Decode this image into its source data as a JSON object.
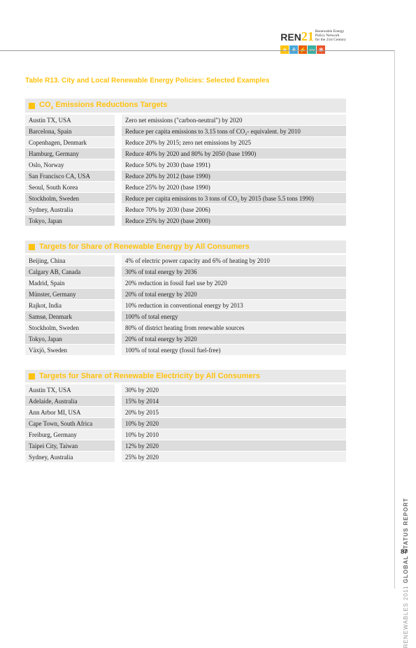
{
  "logo": {
    "prefix": "REN",
    "num": "21",
    "sub1": "Renewable Energy",
    "sub2": "Policy Network",
    "sub3": "for the 21st Century"
  },
  "icons": [
    {
      "bg": "#FFC20E",
      "glyph": "☀"
    },
    {
      "bg": "#4AA8D8",
      "glyph": "⚘"
    },
    {
      "bg": "#E85D00",
      "glyph": "⚡"
    },
    {
      "bg": "#3BAFA0",
      "glyph": "〰"
    },
    {
      "bg": "#E8572E",
      "glyph": "❋"
    }
  ],
  "table_title": "Table R13. City and Local Renewable Energy Policies: Selected Examples",
  "section1": {
    "title_pre": "CO",
    "title_sub": "x",
    "title_post": " Emissions Reductions Targets",
    "rows": [
      [
        "Austin TX, USA",
        "Zero net emissions (\"carbon-neutral\") by 2020"
      ],
      [
        "Barcelona, Spain",
        "Reduce per capita emissions to 3.15 tons of CO₂- equivalent. by 2010"
      ],
      [
        "Copenhagen, Denmark",
        "Reduce 20% by 2015; zero net emissions by 2025"
      ],
      [
        "Hamburg, Germany",
        "Reduce 40% by 2020 and 80% by 2050 (base 1990)"
      ],
      [
        "Oslo, Norway",
        "Reduce 50% by 2030 (base 1991)"
      ],
      [
        "San Francisco CA, USA",
        "Reduce 20% by 2012 (base 1990)"
      ],
      [
        "Seoul, South Korea",
        "Reduce 25% by 2020 (base 1990)"
      ],
      [
        "Stockholm, Sweden",
        "Reduce per capita emissions to 3 tons of CO₂ by 2015 (base 5.5 tons 1990)"
      ],
      [
        "Sydney, Australia",
        "Reduce 70% by 2030 (base 2006)"
      ],
      [
        "Tokyo, Japan",
        "Reduce 25% by 2020 (base 2000)"
      ]
    ]
  },
  "section2": {
    "title": "Targets for Share of Renewable Energy by All Consumers",
    "rows": [
      [
        "Beijing, China",
        "4% of electric power capacity and 6% of heating by 2010"
      ],
      [
        "Calgary AB, Canada",
        "30% of total energy by 2036"
      ],
      [
        "Madrid, Spain",
        "20% reduction in fossil fuel use by 2020"
      ],
      [
        "Münster, Germany",
        "20% of total energy by 2020"
      ],
      [
        "Rajkot, India",
        "10% reduction in conventional energy by 2013"
      ],
      [
        "Samsø, Denmark",
        "100% of total energy"
      ],
      [
        "Stockholm, Sweden",
        "80% of district heating from renewable sources"
      ],
      [
        "Tokyo, Japan",
        "20% of total energy by 2020"
      ],
      [
        "Växjö, Sweden",
        "100% of total energy (fossil fuel-free)"
      ]
    ]
  },
  "section3": {
    "title": "Targets for Share of Renewable Electricity by All Consumers",
    "rows": [
      [
        "Austin TX, USA",
        "30% by 2020"
      ],
      [
        "Adelaide, Australia",
        "15% by 2014"
      ],
      [
        "Ann Arbor MI, USA",
        "20% by 2015"
      ],
      [
        "Cape Town, South Africa",
        "10% by 2020"
      ],
      [
        "Freiburg, Germany",
        "10% by 2010"
      ],
      [
        "Taipei City, Taiwan",
        "12% by 2020"
      ],
      [
        "Sydney, Australia",
        "25% by 2020"
      ]
    ]
  },
  "side_label_regular": "RENEWABLES 2011 ",
  "side_label_bold": "GLOBAL STATUS REPORT",
  "page_number": "87"
}
